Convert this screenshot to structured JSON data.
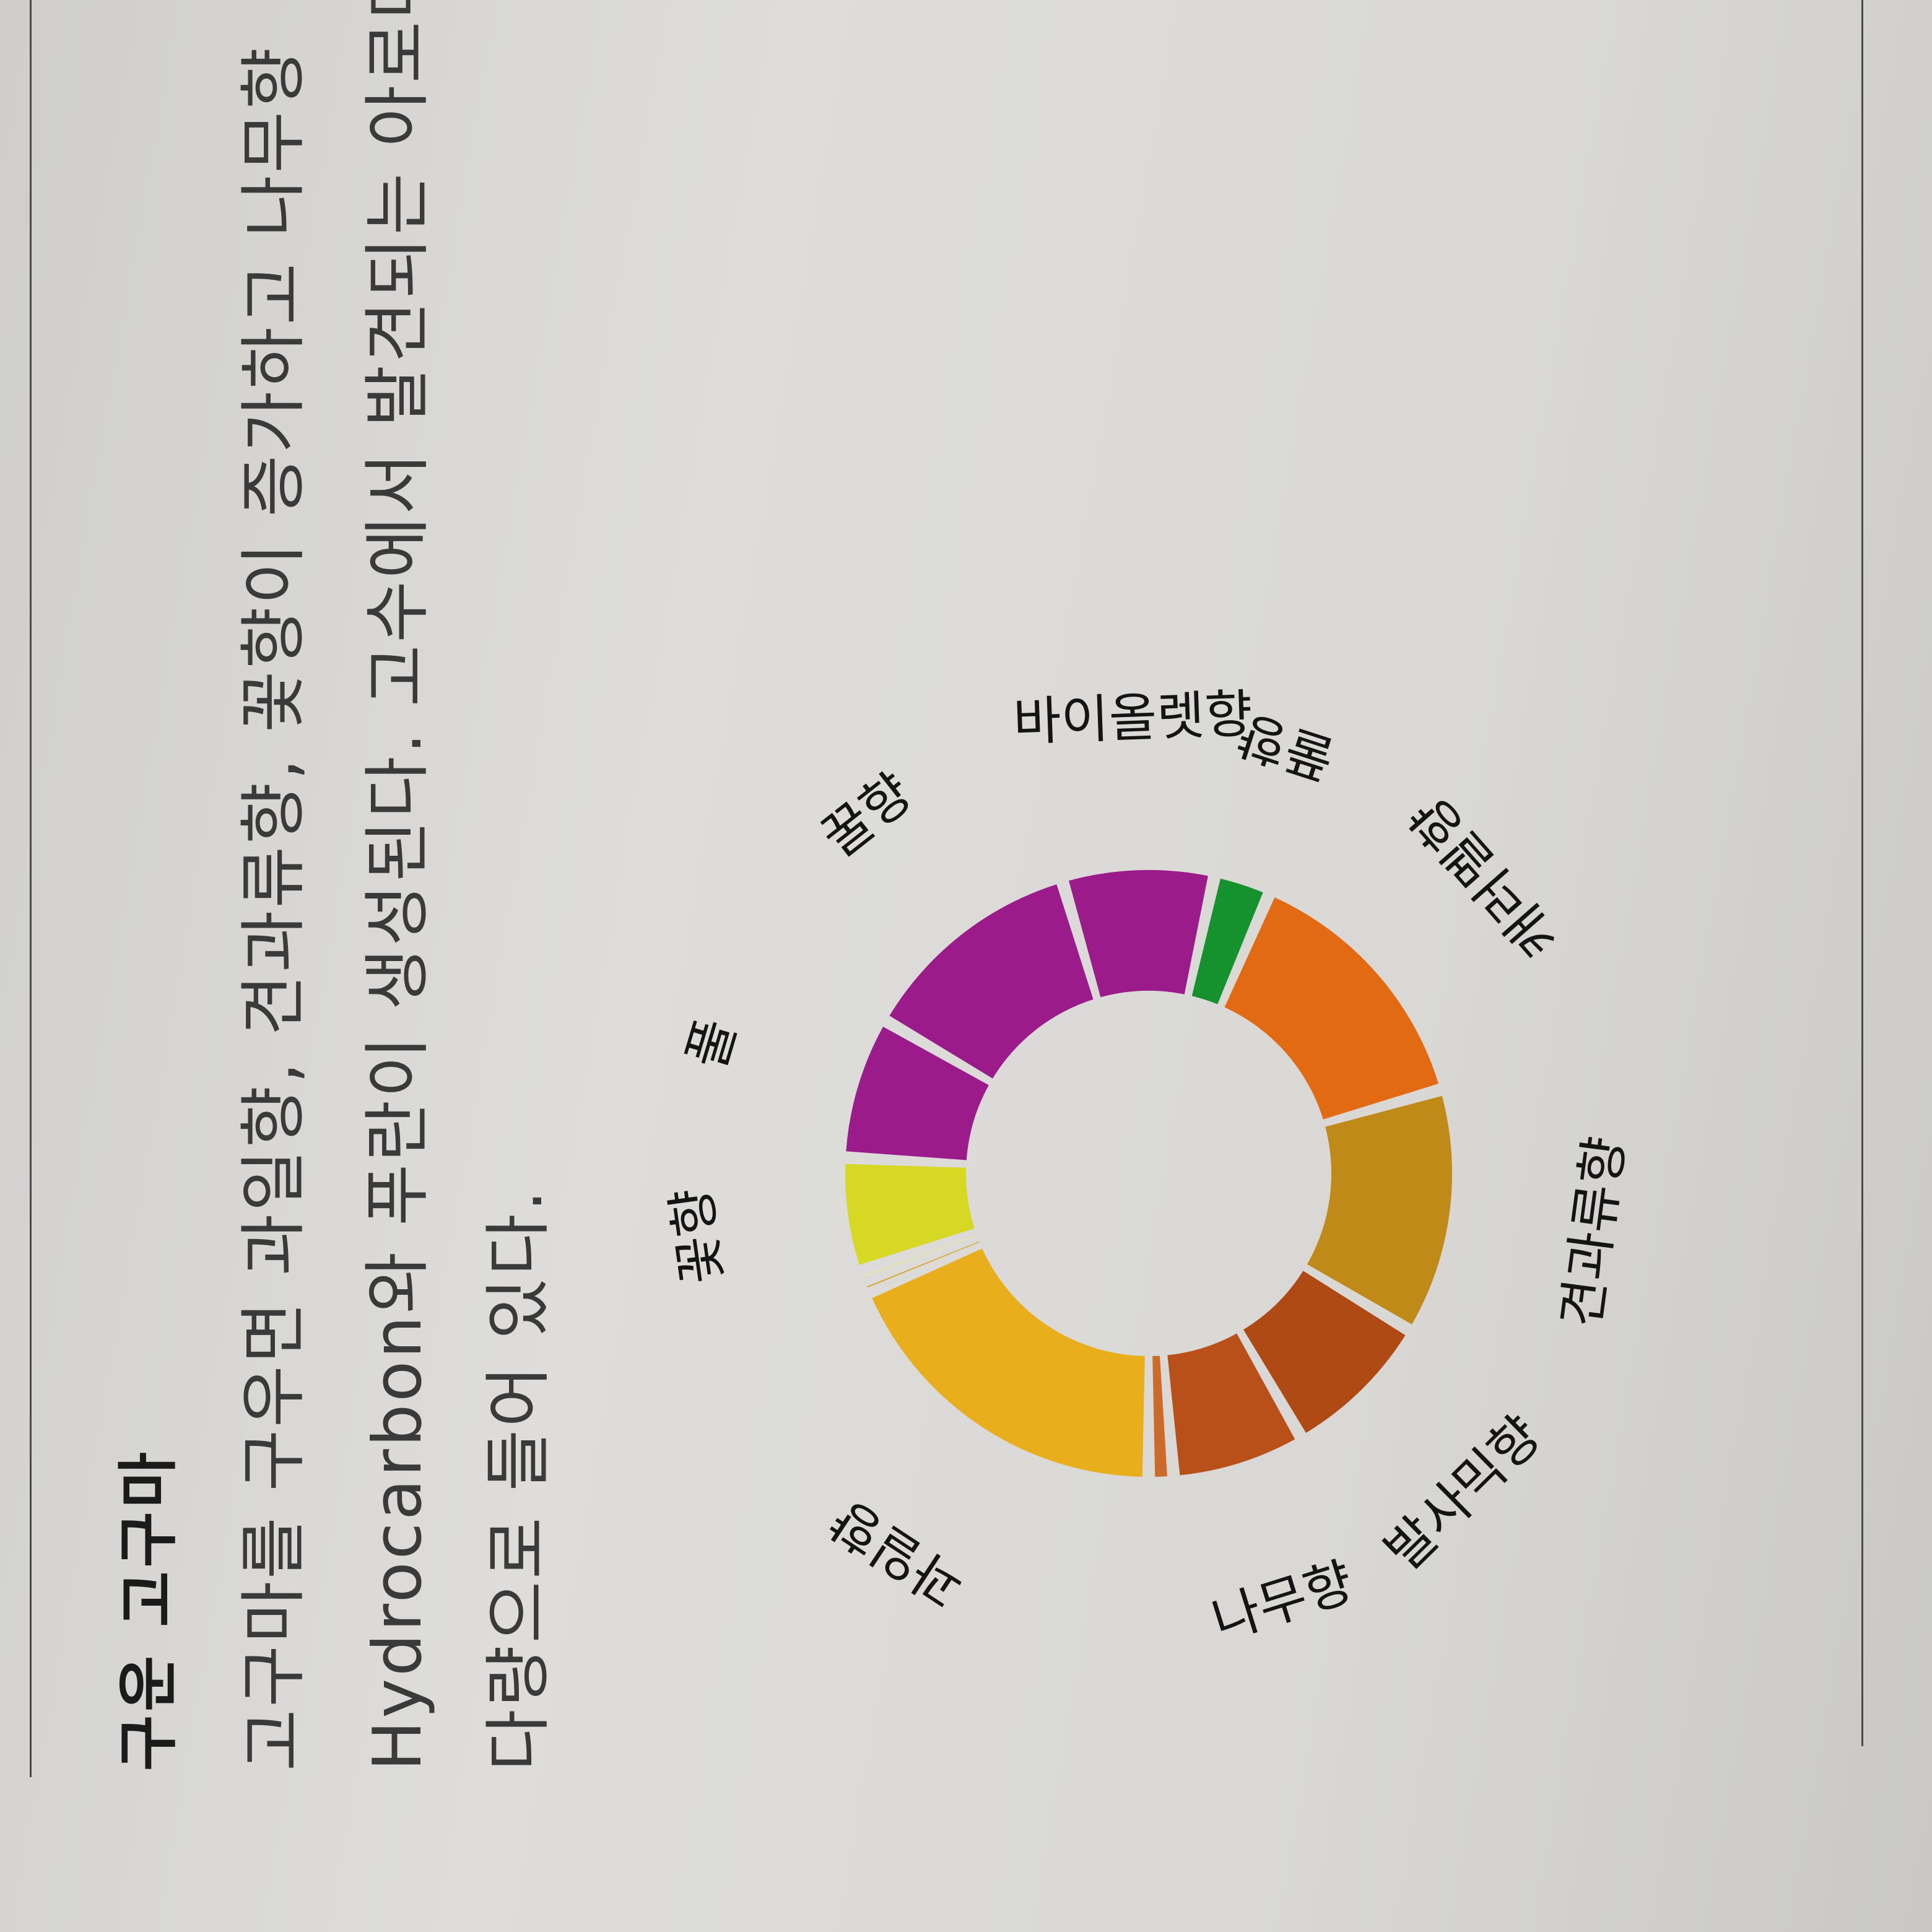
{
  "section": {
    "title": "구운 고구마",
    "body_lines": [
      "고구마를 구우면 과일향, 견과류향, 꽃향이 증가하고 나무향",
      "Hydrocarbon와 푸란이 생성된다. 고수에서 발견되는 아로마",
      "다량으로 들어 있다."
    ]
  },
  "chart_data": {
    "type": "pie",
    "variant": "donut",
    "series": [
      {
        "label": "과일향",
        "value": 18.5,
        "color": "#e8ae1c"
      },
      {
        "label": "",
        "value": 0.6,
        "color": "#d9a21a"
      },
      {
        "label": "",
        "value": 0.6,
        "color": "#e9e6a0"
      },
      {
        "label": "꽃향",
        "value": 6,
        "color": "#d6d824"
      },
      {
        "label": "풀",
        "value": 7.5,
        "color": "#9b1b8b"
      },
      {
        "label": "꿀향",
        "value": 12,
        "color": "#9b1b8b"
      },
      {
        "label": "바이올렛향",
        "value": 8,
        "color": "#9b1b8b"
      },
      {
        "label": "풀향",
        "value": 3,
        "color": "#15922e"
      },
      {
        "label": "캐러멜향",
        "value": 14,
        "color": "#e26a12"
      },
      {
        "label": "견과류향",
        "value": 13,
        "color": "#c08a18"
      },
      {
        "label": "발사믹향",
        "value": 8,
        "color": "#b04a14"
      },
      {
        "label": "나무향",
        "value": 7,
        "color": "#b9501a"
      },
      {
        "label": "",
        "value": 1.3,
        "color": "#cc6a2a"
      }
    ]
  }
}
